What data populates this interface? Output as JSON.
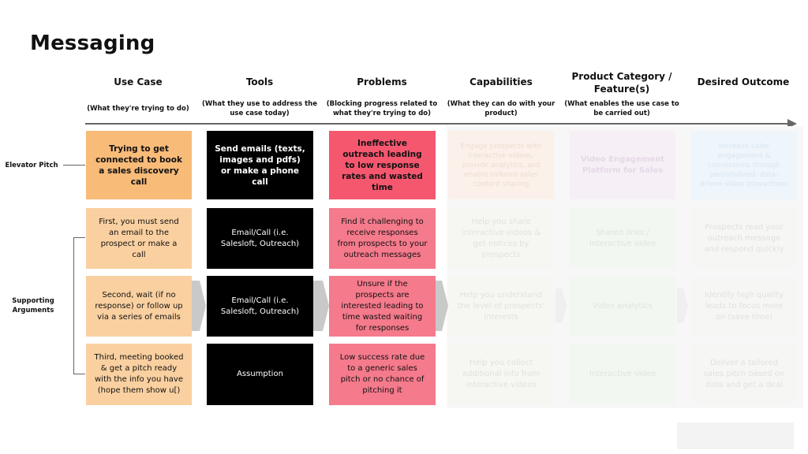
{
  "title": "Messaging",
  "columns": [
    {
      "header": "Use Case",
      "sub": "(What they're trying to do)"
    },
    {
      "header": "Tools",
      "sub": "(What they use to address the use case today)"
    },
    {
      "header": "Problems",
      "sub": "(Blocking progress related to what they're trying to do)"
    },
    {
      "header": "Capabilities",
      "sub": "(What they can do with your product)"
    },
    {
      "header": "Product Category / Feature(s)",
      "sub": "(What enables the use case to be carried out)"
    },
    {
      "header": "Desired Outcome",
      "sub": ""
    }
  ],
  "row_labels": {
    "elevator": "Elevator Pitch",
    "supporting": "Supporting Arguments"
  },
  "rows": [
    {
      "use_case": "Trying to get connected to book a sales discovery call",
      "tools": "Send emails (texts, images and pdfs) or make a phone call",
      "problems": "Ineffective outreach leading to low response rates and wasted time",
      "capabilities": "Engage prospects with interactive videos, provide analytics, and enable tailored sales content sharing",
      "category": "Video Engagement Platform for Sales",
      "outcome": "Increase sales engagement & conversions through personalized, data-driven video interactions"
    },
    {
      "use_case": "First, you must send an email to the prospect or make a call",
      "tools": "Email/Call (i.e. Salesloft, Outreach)",
      "problems": "Find it challenging to receive responses from prospects to your outreach messages",
      "capabilities": "Help you share interactive videos & get notices by prospects",
      "category": "Shared links / Interactive video",
      "outcome": "Prospects read your outreach message and respond quickly"
    },
    {
      "use_case": "Second, wait (if no response) or follow up via a series of emails",
      "tools": "Email/Call (i.e. Salesloft, Outreach)",
      "problems": "Unsure if the prospects are interested leading to time wasted waiting for responses",
      "capabilities": "Help you understand the level of prospects' interests",
      "category": "Video analytics",
      "outcome": "Identify high quality leads to focus more on (save time)"
    },
    {
      "use_case": "Third, meeting booked & get a pitch ready with the info you have (hope them show u[)",
      "tools": "Assumption",
      "problems": "Low success rate due to a generic sales pitch or no chance of pitching it",
      "capabilities": "Help you collect additional info from interactive videos",
      "category": "Interactive video",
      "outcome": "Deliver a tailored sales pitch based on data and get a deal"
    }
  ],
  "colors": {
    "use_case_primary": "#f8bb78",
    "use_case": "#fad0a0",
    "tools": "#000000",
    "problems_primary": "#f5576f",
    "problems": "#f57a8c"
  }
}
